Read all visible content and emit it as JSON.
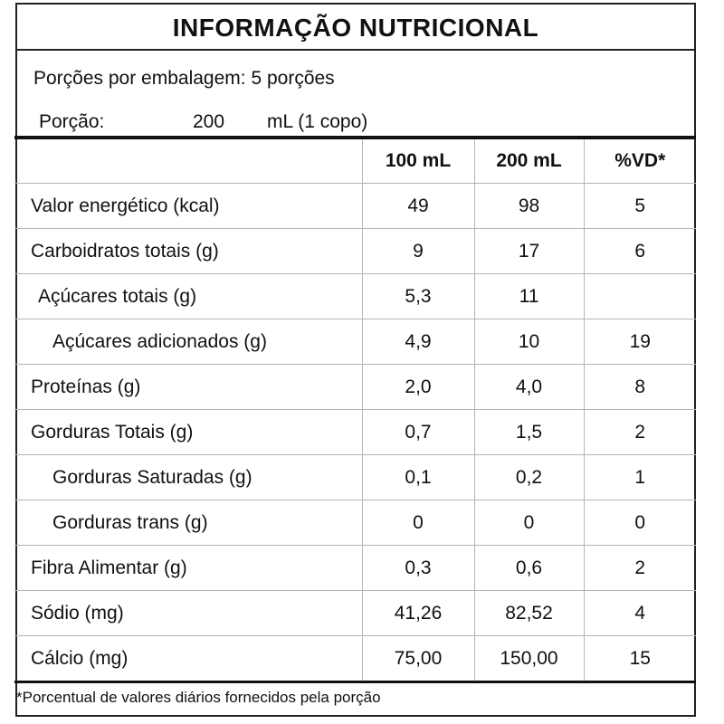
{
  "title": "INFORMAÇÃO NUTRICIONAL",
  "servings_per_package": "Porções por embalagem: 5 porções",
  "portion": {
    "label": "Porção:",
    "amount": "200",
    "unit": "mL (1 copo)"
  },
  "table": {
    "headers": [
      "",
      "100 mL",
      "200 mL",
      "%VD*"
    ],
    "rows": [
      {
        "name": "Valor energético (kcal)",
        "per100": "49",
        "per200": "98",
        "vd": "5"
      },
      {
        "name": "Carboidratos totais (g)",
        "per100": "9",
        "per200": "17",
        "vd": "6"
      },
      {
        "name": "Açúcares totais (g)",
        "per100": "5,3",
        "per200": "11",
        "vd": ""
      },
      {
        "name": "Açúcares adicionados (g)",
        "per100": "4,9",
        "per200": "10",
        "vd": "19"
      },
      {
        "name": "Proteínas (g)",
        "per100": "2,0",
        "per200": "4,0",
        "vd": "8"
      },
      {
        "name": "Gorduras Totais (g)",
        "per100": "0,7",
        "per200": "1,5",
        "vd": "2"
      },
      {
        "name": "Gorduras Saturadas (g)",
        "per100": "0,1",
        "per200": "0,2",
        "vd": "1"
      },
      {
        "name": "Gorduras trans (g)",
        "per100": "0",
        "per200": "0",
        "vd": "0"
      },
      {
        "name": "Fibra Alimentar (g)",
        "per100": "0,3",
        "per200": "0,6",
        "vd": "2"
      },
      {
        "name": "Sódio (mg)",
        "per100": "41,26",
        "per200": "82,52",
        "vd": "4"
      },
      {
        "name": "Cálcio (mg)",
        "per100": "75,00",
        "per200": "150,00",
        "vd": "15"
      }
    ]
  },
  "footnote": "*Porcentual de valores diários fornecidos pela porção"
}
